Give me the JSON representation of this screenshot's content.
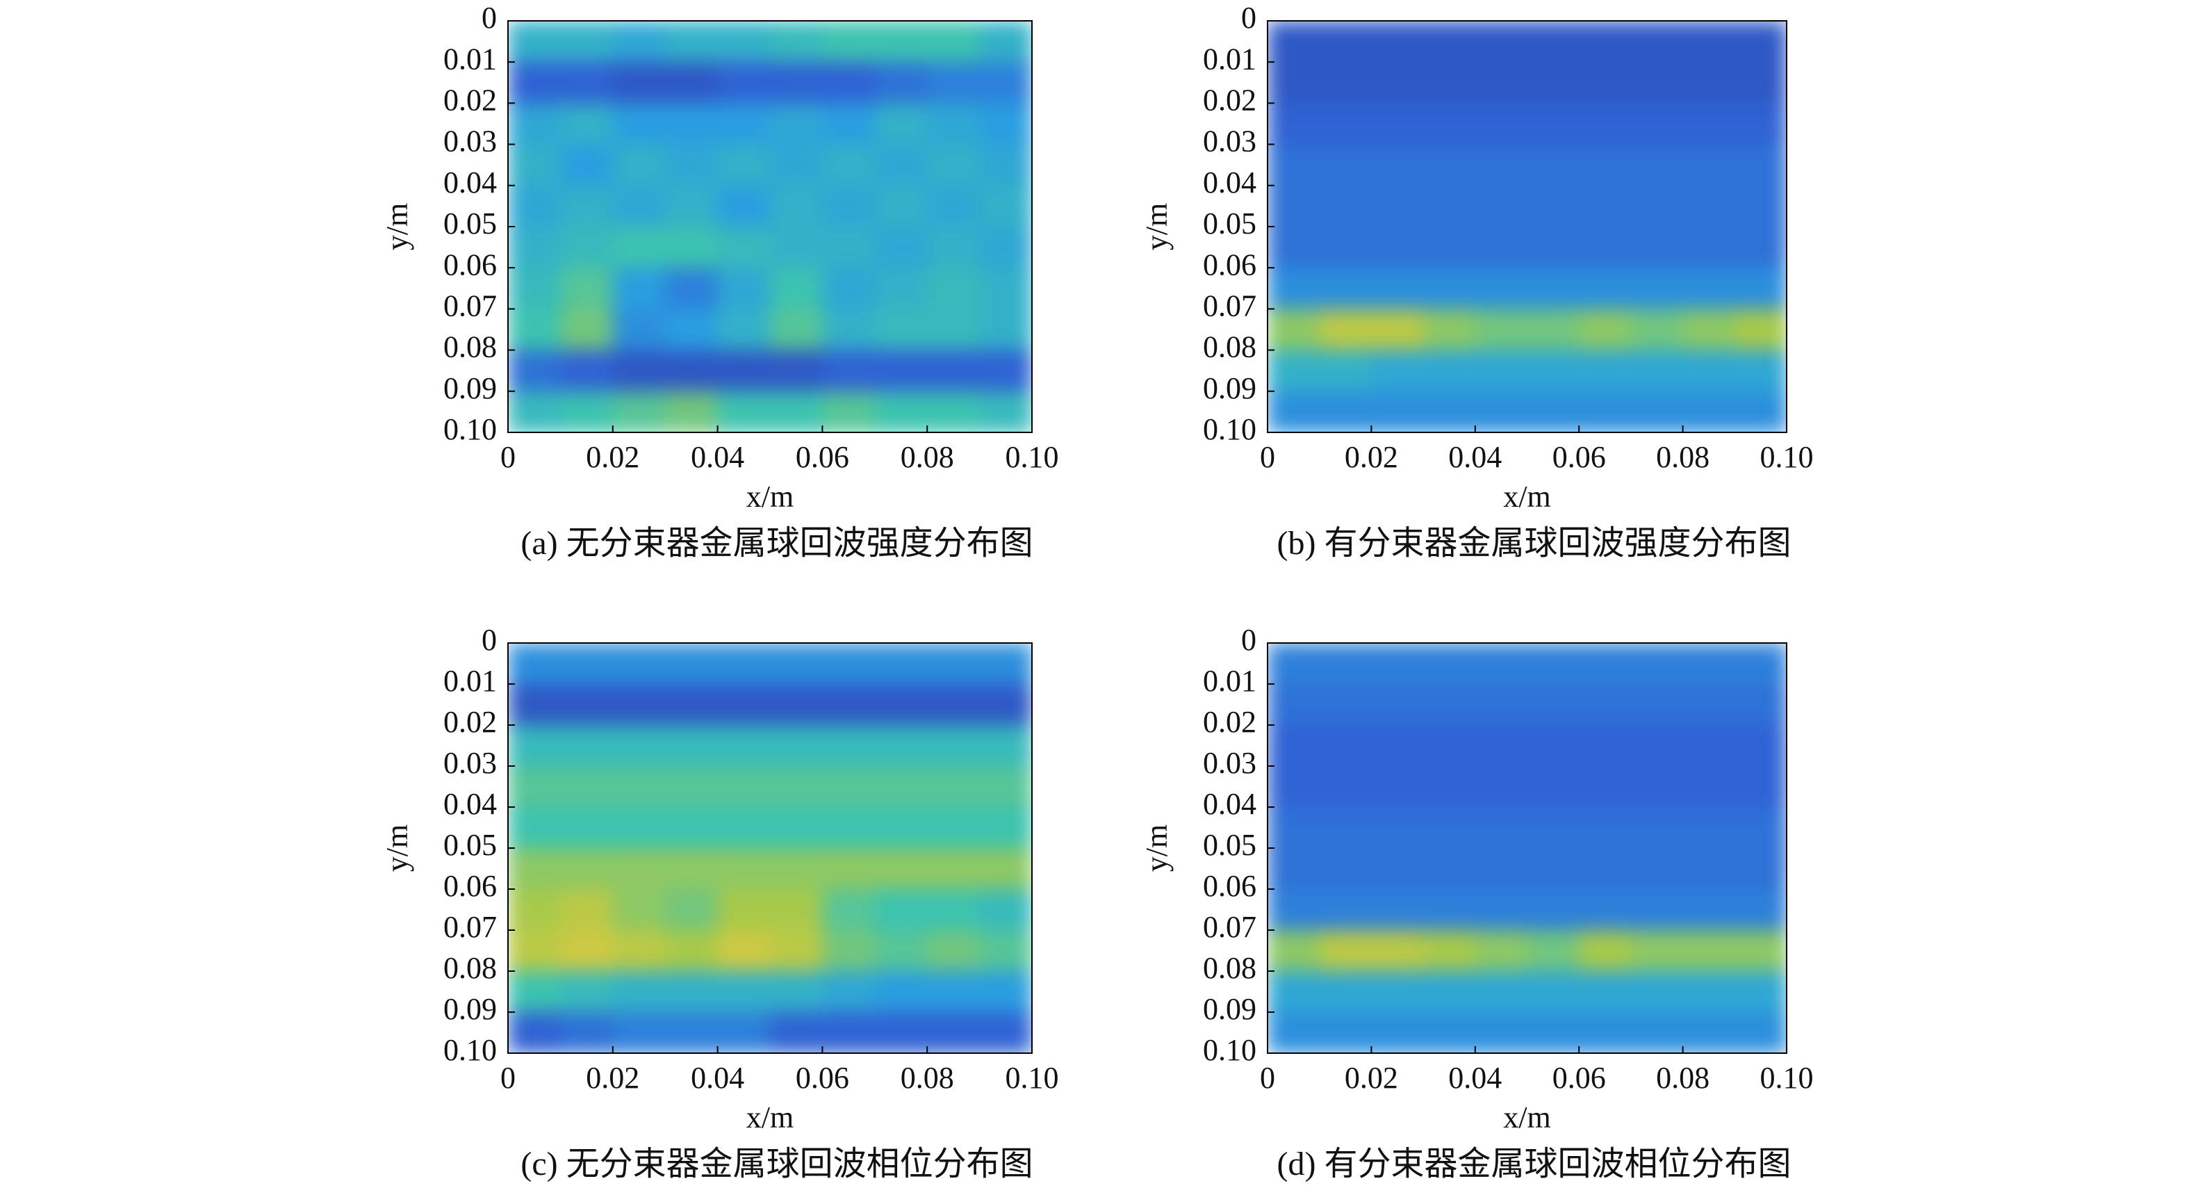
{
  "chart_data": [
    {
      "type": "heatmap",
      "caption": "(a) 无分束器金属球回波强度分布图",
      "xlabel": "x/m",
      "ylabel": "y/m",
      "xlim": [
        0,
        0.1
      ],
      "ylim": [
        0.1,
        0
      ],
      "xticks": [
        0,
        0.02,
        0.04,
        0.06,
        0.08,
        {
          "value": 0.1,
          "label": "0.10"
        }
      ],
      "yticks": [
        0,
        0.01,
        0.02,
        0.03,
        0.04,
        0.05,
        0.06,
        0.07,
        0.08,
        0.09,
        {
          "value": 0.1,
          "label": "0.10"
        }
      ],
      "colormap": [
        "#2c3a98",
        "#2f62d4",
        "#2a9ee0",
        "#3cc3b0",
        "#a8c94a",
        "#f4c83a"
      ],
      "z": [
        [
          0.5,
          0.5,
          0.45,
          0.5,
          0.5,
          0.55,
          0.6,
          0.6,
          0.6,
          0.5
        ],
        [
          0.2,
          0.2,
          0.15,
          0.15,
          0.2,
          0.2,
          0.2,
          0.25,
          0.3,
          0.3
        ],
        [
          0.45,
          0.5,
          0.4,
          0.4,
          0.4,
          0.45,
          0.4,
          0.5,
          0.45,
          0.4
        ],
        [
          0.5,
          0.4,
          0.5,
          0.45,
          0.5,
          0.45,
          0.5,
          0.45,
          0.5,
          0.45
        ],
        [
          0.45,
          0.5,
          0.45,
          0.5,
          0.4,
          0.5,
          0.45,
          0.5,
          0.45,
          0.5
        ],
        [
          0.5,
          0.55,
          0.6,
          0.6,
          0.55,
          0.5,
          0.5,
          0.45,
          0.5,
          0.45
        ],
        [
          0.55,
          0.65,
          0.4,
          0.3,
          0.45,
          0.6,
          0.45,
          0.5,
          0.55,
          0.5
        ],
        [
          0.6,
          0.7,
          0.35,
          0.4,
          0.5,
          0.65,
          0.5,
          0.55,
          0.55,
          0.5
        ],
        [
          0.25,
          0.2,
          0.15,
          0.15,
          0.15,
          0.15,
          0.2,
          0.2,
          0.2,
          0.2
        ],
        [
          0.55,
          0.6,
          0.65,
          0.7,
          0.6,
          0.6,
          0.65,
          0.6,
          0.6,
          0.55
        ]
      ]
    },
    {
      "type": "heatmap",
      "caption": "(b) 有分束器金属球回波强度分布图",
      "xlabel": "x/m",
      "ylabel": "y/m",
      "xlim": [
        0,
        0.1
      ],
      "ylim": [
        0.1,
        0
      ],
      "xticks": [
        0,
        0.02,
        0.04,
        0.06,
        0.08,
        {
          "value": 0.1,
          "label": "0.10"
        }
      ],
      "yticks": [
        0,
        0.01,
        0.02,
        0.03,
        0.04,
        0.05,
        0.06,
        0.07,
        0.08,
        0.09,
        {
          "value": 0.1,
          "label": "0.10"
        }
      ],
      "colormap": [
        "#2c3a98",
        "#2f62d4",
        "#2a9ee0",
        "#3cc3b0",
        "#a8c94a",
        "#f4c83a"
      ],
      "z": [
        [
          0.15,
          0.15,
          0.15,
          0.15,
          0.15,
          0.15,
          0.15,
          0.15,
          0.15,
          0.15
        ],
        [
          0.15,
          0.15,
          0.15,
          0.15,
          0.15,
          0.15,
          0.15,
          0.15,
          0.15,
          0.15
        ],
        [
          0.2,
          0.2,
          0.2,
          0.2,
          0.2,
          0.2,
          0.2,
          0.2,
          0.2,
          0.2
        ],
        [
          0.25,
          0.25,
          0.25,
          0.25,
          0.25,
          0.25,
          0.25,
          0.25,
          0.25,
          0.25
        ],
        [
          0.25,
          0.25,
          0.25,
          0.25,
          0.25,
          0.25,
          0.25,
          0.25,
          0.25,
          0.25
        ],
        [
          0.25,
          0.25,
          0.25,
          0.25,
          0.25,
          0.25,
          0.25,
          0.25,
          0.25,
          0.25
        ],
        [
          0.35,
          0.35,
          0.35,
          0.35,
          0.35,
          0.35,
          0.35,
          0.35,
          0.35,
          0.35
        ],
        [
          0.75,
          0.85,
          0.85,
          0.75,
          0.7,
          0.7,
          0.75,
          0.7,
          0.75,
          0.8
        ],
        [
          0.5,
          0.5,
          0.45,
          0.45,
          0.45,
          0.45,
          0.45,
          0.45,
          0.45,
          0.45
        ],
        [
          0.35,
          0.35,
          0.35,
          0.35,
          0.35,
          0.35,
          0.35,
          0.35,
          0.35,
          0.35
        ]
      ]
    },
    {
      "type": "heatmap",
      "caption": "(c) 无分束器金属球回波相位分布图",
      "xlabel": "x/m",
      "ylabel": "y/m",
      "xlim": [
        0,
        0.1
      ],
      "ylim": [
        0.1,
        0
      ],
      "xticks": [
        0,
        0.02,
        0.04,
        0.06,
        0.08,
        {
          "value": 0.1,
          "label": "0.10"
        }
      ],
      "yticks": [
        0,
        0.01,
        0.02,
        0.03,
        0.04,
        0.05,
        0.06,
        0.07,
        0.08,
        0.09,
        {
          "value": 0.1,
          "label": "0.10"
        }
      ],
      "colormap": [
        "#2c3a98",
        "#2f62d4",
        "#2a9ee0",
        "#3cc3b0",
        "#a8c94a",
        "#f4c83a"
      ],
      "z": [
        [
          0.35,
          0.35,
          0.35,
          0.35,
          0.35,
          0.35,
          0.35,
          0.35,
          0.35,
          0.35
        ],
        [
          0.15,
          0.15,
          0.15,
          0.15,
          0.15,
          0.15,
          0.15,
          0.15,
          0.15,
          0.15
        ],
        [
          0.55,
          0.55,
          0.55,
          0.55,
          0.55,
          0.55,
          0.55,
          0.55,
          0.55,
          0.55
        ],
        [
          0.65,
          0.65,
          0.65,
          0.65,
          0.65,
          0.65,
          0.65,
          0.65,
          0.65,
          0.65
        ],
        [
          0.6,
          0.6,
          0.6,
          0.6,
          0.6,
          0.6,
          0.6,
          0.6,
          0.6,
          0.6
        ],
        [
          0.75,
          0.75,
          0.75,
          0.75,
          0.75,
          0.75,
          0.75,
          0.75,
          0.75,
          0.75
        ],
        [
          0.8,
          0.85,
          0.75,
          0.7,
          0.8,
          0.8,
          0.65,
          0.6,
          0.6,
          0.55
        ],
        [
          0.85,
          0.9,
          0.85,
          0.8,
          0.9,
          0.85,
          0.7,
          0.65,
          0.7,
          0.65
        ],
        [
          0.6,
          0.55,
          0.5,
          0.5,
          0.5,
          0.5,
          0.45,
          0.4,
          0.4,
          0.4
        ],
        [
          0.2,
          0.25,
          0.3,
          0.3,
          0.3,
          0.2,
          0.2,
          0.2,
          0.2,
          0.2
        ]
      ]
    },
    {
      "type": "heatmap",
      "caption": "(d) 有分束器金属球回波相位分布图",
      "xlabel": "x/m",
      "ylabel": "y/m",
      "xlim": [
        0,
        0.1
      ],
      "ylim": [
        0.1,
        0
      ],
      "xticks": [
        0,
        0.02,
        0.04,
        0.06,
        0.08,
        {
          "value": 0.1,
          "label": "0.10"
        }
      ],
      "yticks": [
        0,
        0.01,
        0.02,
        0.03,
        0.04,
        0.05,
        0.06,
        0.07,
        0.08,
        0.09,
        {
          "value": 0.1,
          "label": "0.10"
        }
      ],
      "colormap": [
        "#2c3a98",
        "#2f62d4",
        "#2a9ee0",
        "#3cc3b0",
        "#a8c94a",
        "#f4c83a"
      ],
      "z": [
        [
          0.3,
          0.3,
          0.3,
          0.3,
          0.3,
          0.3,
          0.3,
          0.3,
          0.3,
          0.3
        ],
        [
          0.25,
          0.25,
          0.25,
          0.25,
          0.25,
          0.25,
          0.25,
          0.25,
          0.25,
          0.25
        ],
        [
          0.2,
          0.2,
          0.2,
          0.2,
          0.2,
          0.2,
          0.2,
          0.2,
          0.2,
          0.2
        ],
        [
          0.2,
          0.2,
          0.2,
          0.2,
          0.2,
          0.2,
          0.2,
          0.2,
          0.2,
          0.2
        ],
        [
          0.25,
          0.25,
          0.25,
          0.25,
          0.25,
          0.25,
          0.25,
          0.25,
          0.25,
          0.25
        ],
        [
          0.25,
          0.25,
          0.25,
          0.25,
          0.25,
          0.25,
          0.25,
          0.25,
          0.25,
          0.25
        ],
        [
          0.3,
          0.3,
          0.3,
          0.3,
          0.3,
          0.3,
          0.3,
          0.3,
          0.3,
          0.3
        ],
        [
          0.75,
          0.85,
          0.85,
          0.8,
          0.75,
          0.7,
          0.8,
          0.75,
          0.75,
          0.75
        ],
        [
          0.45,
          0.45,
          0.45,
          0.45,
          0.45,
          0.45,
          0.45,
          0.45,
          0.45,
          0.45
        ],
        [
          0.35,
          0.35,
          0.35,
          0.35,
          0.35,
          0.35,
          0.35,
          0.35,
          0.35,
          0.35
        ]
      ]
    }
  ]
}
